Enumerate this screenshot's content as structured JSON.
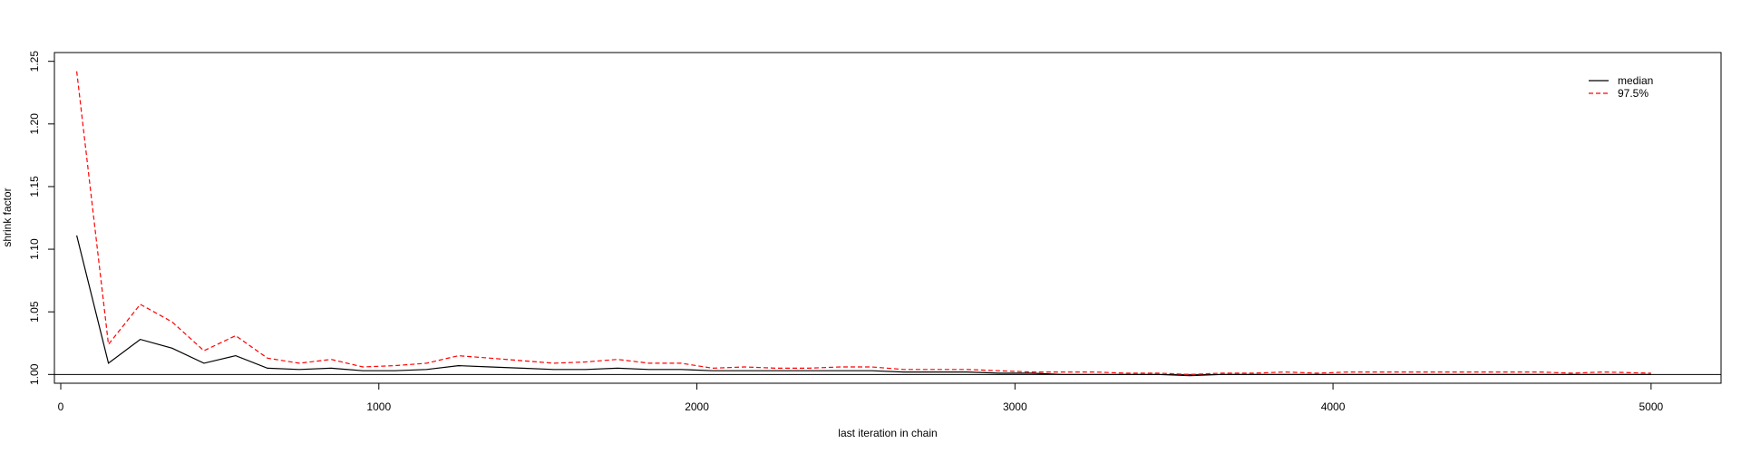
{
  "chart_data": {
    "type": "line",
    "xlabel": "last iteration in chain",
    "ylabel": "shrink factor",
    "xlim": [
      -20,
      5220
    ],
    "ylim": [
      0.993,
      1.257
    ],
    "x_ticks": [
      0,
      1000,
      2000,
      3000,
      4000,
      5000
    ],
    "y_ticks": [
      1.0,
      1.05,
      1.1,
      1.15,
      1.2,
      1.25
    ],
    "x_tick_labels": [
      "0",
      "1000",
      "2000",
      "3000",
      "4000",
      "5000"
    ],
    "y_tick_labels": [
      "1.00",
      "1.05",
      "1.10",
      "1.15",
      "1.20",
      "1.25"
    ],
    "reference_line": 1.0,
    "legend_position": "top-right",
    "x": [
      50,
      150,
      250,
      350,
      450,
      550,
      650,
      750,
      850,
      950,
      1050,
      1150,
      1250,
      1350,
      1450,
      1550,
      1650,
      1750,
      1850,
      1950,
      2050,
      2150,
      2250,
      2350,
      2450,
      2550,
      2650,
      2750,
      2850,
      2950,
      3050,
      3150,
      3250,
      3350,
      3450,
      3550,
      3650,
      3750,
      3850,
      3950,
      4050,
      4150,
      4250,
      4350,
      4450,
      4550,
      4650,
      4750,
      4850,
      5000
    ],
    "series": [
      {
        "name": "median",
        "color": "#000000",
        "dash": "solid",
        "values": [
          1.111,
          1.009,
          1.028,
          1.021,
          1.009,
          1.015,
          1.005,
          1.004,
          1.005,
          1.003,
          1.003,
          1.004,
          1.007,
          1.006,
          1.005,
          1.004,
          1.004,
          1.005,
          1.004,
          1.004,
          1.003,
          1.003,
          1.003,
          1.003,
          1.003,
          1.003,
          1.002,
          1.002,
          1.002,
          1.001,
          1.001,
          1.0,
          1.0,
          1.0,
          1.0,
          0.999,
          1.0,
          1.0,
          1.0,
          1.0,
          1.0,
          1.0,
          1.0,
          1.0,
          1.0,
          1.0,
          1.0,
          1.0,
          1.0,
          1.0
        ]
      },
      {
        "name": "97.5%",
        "color": "#ff0000",
        "dash": "dashed",
        "values": [
          1.242,
          1.024,
          1.056,
          1.042,
          1.019,
          1.031,
          1.013,
          1.009,
          1.012,
          1.006,
          1.007,
          1.009,
          1.015,
          1.013,
          1.011,
          1.009,
          1.01,
          1.012,
          1.009,
          1.009,
          1.005,
          1.006,
          1.005,
          1.005,
          1.006,
          1.006,
          1.004,
          1.004,
          1.004,
          1.003,
          1.002,
          1.002,
          1.002,
          1.001,
          1.001,
          1.0,
          1.001,
          1.001,
          1.002,
          1.001,
          1.002,
          1.002,
          1.002,
          1.002,
          1.002,
          1.002,
          1.002,
          1.001,
          1.002,
          1.001
        ]
      }
    ]
  }
}
